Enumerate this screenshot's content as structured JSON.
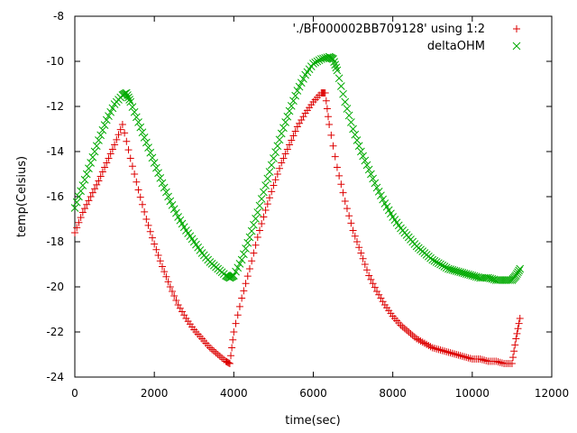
{
  "chart_data": {
    "type": "scatter",
    "title": "",
    "xlabel": "time(sec)",
    "ylabel": "temp(Celsius)",
    "xlim": [
      0,
      12000
    ],
    "ylim": [
      -24,
      -8
    ],
    "xticks": [
      0,
      2000,
      4000,
      6000,
      8000,
      10000,
      12000
    ],
    "yticks": [
      -24,
      -22,
      -20,
      -18,
      -16,
      -14,
      -12,
      -10,
      -8
    ],
    "grid": false,
    "legend_position": "top-right",
    "series": [
      {
        "name": "'./BF000002BB709128' using 1:2",
        "marker": "plus",
        "color": "#dd0000",
        "x": [
          0,
          200,
          400,
          600,
          800,
          1000,
          1200,
          1400,
          1600,
          1800,
          2000,
          2200,
          2400,
          2600,
          2800,
          3000,
          3200,
          3400,
          3600,
          3800,
          3900,
          4000,
          4200,
          4400,
          4600,
          4800,
          5000,
          5200,
          5400,
          5600,
          5800,
          6000,
          6200,
          6300,
          6400,
          6600,
          6800,
          7000,
          7200,
          7400,
          7600,
          7800,
          8000,
          8200,
          8400,
          8600,
          8800,
          9000,
          9200,
          9400,
          9600,
          9800,
          10000,
          10200,
          10400,
          10600,
          10800,
          11000,
          11100,
          11200
        ],
        "y": [
          -17.6,
          -16.7,
          -16.0,
          -15.3,
          -14.5,
          -13.7,
          -12.8,
          -14.3,
          -15.7,
          -17.0,
          -18.1,
          -19.1,
          -20.0,
          -20.8,
          -21.4,
          -21.9,
          -22.3,
          -22.7,
          -23.0,
          -23.3,
          -23.4,
          -22.0,
          -20.5,
          -19.2,
          -17.8,
          -16.6,
          -15.5,
          -14.5,
          -13.7,
          -12.9,
          -12.3,
          -11.8,
          -11.4,
          -11.4,
          -12.8,
          -14.7,
          -16.2,
          -17.5,
          -18.5,
          -19.5,
          -20.2,
          -20.8,
          -21.3,
          -21.7,
          -22.0,
          -22.3,
          -22.5,
          -22.7,
          -22.8,
          -22.9,
          -23.0,
          -23.1,
          -23.2,
          -23.2,
          -23.3,
          -23.3,
          -23.4,
          -23.4,
          -22.3,
          -21.4
        ]
      },
      {
        "name": "deltaOHM",
        "marker": "cross",
        "color": "#00aa00",
        "x": [
          0,
          200,
          400,
          600,
          800,
          1000,
          1200,
          1300,
          1400,
          1600,
          1800,
          2000,
          2200,
          2400,
          2600,
          2800,
          3000,
          3200,
          3400,
          3600,
          3800,
          3900,
          4000,
          4200,
          4400,
          4600,
          4800,
          5000,
          5200,
          5400,
          5600,
          5800,
          6000,
          6200,
          6400,
          6500,
          6600,
          6800,
          7000,
          7200,
          7400,
          7600,
          7800,
          8000,
          8200,
          8400,
          8600,
          8800,
          9000,
          9200,
          9400,
          9600,
          9800,
          10000,
          10200,
          10400,
          10600,
          10800,
          11000,
          11100,
          11200
        ],
        "y": [
          -16.5,
          -15.5,
          -14.5,
          -13.5,
          -12.6,
          -11.9,
          -11.5,
          -11.4,
          -11.8,
          -12.7,
          -13.6,
          -14.5,
          -15.4,
          -16.2,
          -16.9,
          -17.5,
          -18.0,
          -18.5,
          -18.9,
          -19.2,
          -19.5,
          -19.6,
          -19.5,
          -18.8,
          -17.8,
          -16.7,
          -15.5,
          -14.3,
          -13.2,
          -12.2,
          -11.3,
          -10.6,
          -10.1,
          -9.9,
          -9.8,
          -9.9,
          -10.4,
          -11.8,
          -13.0,
          -14.0,
          -14.8,
          -15.6,
          -16.3,
          -16.9,
          -17.4,
          -17.8,
          -18.2,
          -18.5,
          -18.8,
          -19.0,
          -19.2,
          -19.3,
          -19.4,
          -19.5,
          -19.6,
          -19.6,
          -19.7,
          -19.7,
          -19.7,
          -19.5,
          -19.2
        ]
      }
    ]
  }
}
